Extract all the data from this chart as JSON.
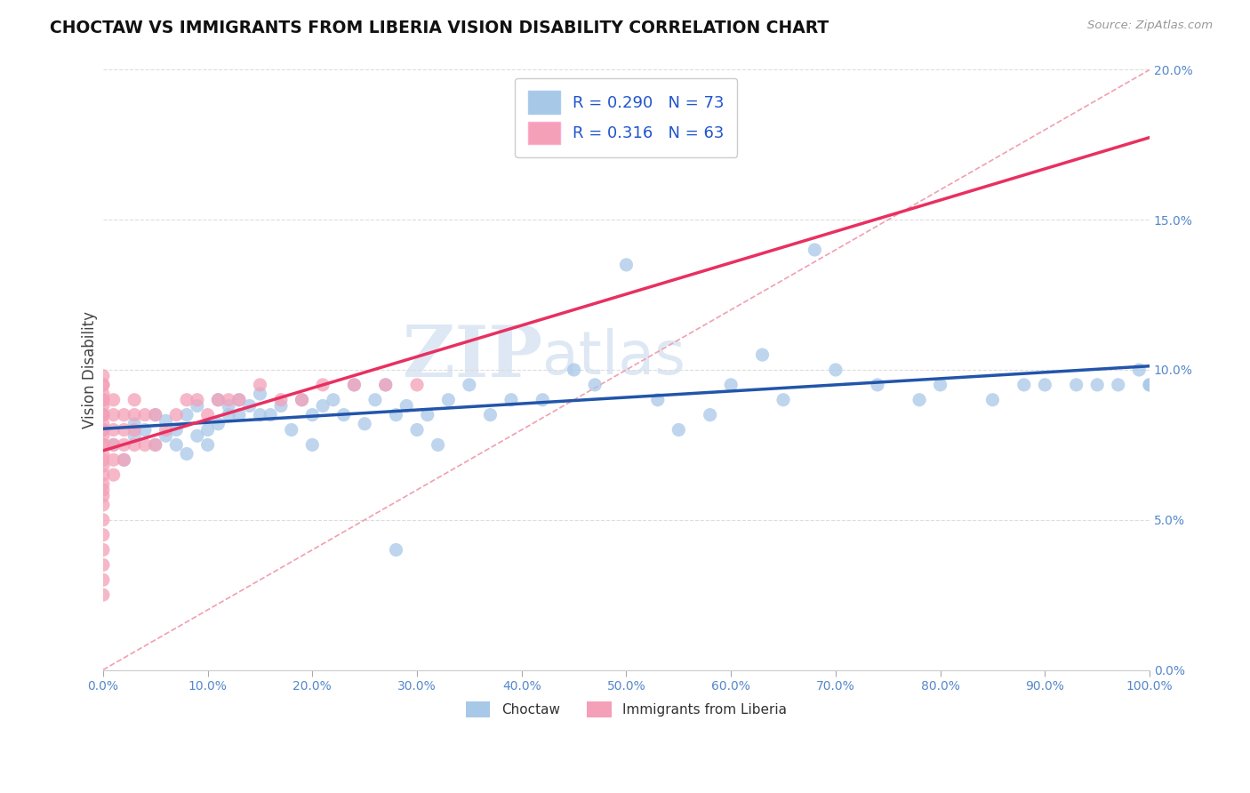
{
  "title": "CHOCTAW VS IMMIGRANTS FROM LIBERIA VISION DISABILITY CORRELATION CHART",
  "source_text": "Source: ZipAtlas.com",
  "ylabel": "Vision Disability",
  "xlim": [
    0,
    100
  ],
  "ylim": [
    0,
    20
  ],
  "xticks": [
    0,
    10,
    20,
    30,
    40,
    50,
    60,
    70,
    80,
    90,
    100
  ],
  "yticks": [
    0,
    5,
    10,
    15,
    20
  ],
  "choctaw_color": "#a8c8e8",
  "liberia_color": "#f4a0b8",
  "choctaw_line_color": "#2255aa",
  "liberia_line_color": "#e83060",
  "ref_line_color": "#f0a0b0",
  "choctaw_R": 0.29,
  "choctaw_N": 73,
  "liberia_R": 0.316,
  "liberia_N": 63,
  "watermark_zip": "ZIP",
  "watermark_atlas": "atlas",
  "background_color": "#ffffff",
  "choctaw_x": [
    1,
    2,
    3,
    3,
    4,
    5,
    5,
    6,
    6,
    7,
    7,
    8,
    8,
    9,
    9,
    10,
    10,
    11,
    11,
    12,
    12,
    13,
    13,
    14,
    15,
    15,
    16,
    17,
    18,
    19,
    20,
    20,
    21,
    22,
    23,
    24,
    25,
    26,
    27,
    28,
    29,
    30,
    31,
    32,
    33,
    35,
    37,
    39,
    42,
    45,
    47,
    50,
    53,
    55,
    58,
    60,
    63,
    65,
    68,
    70,
    74,
    78,
    80,
    85,
    88,
    90,
    93,
    95,
    97,
    99,
    100,
    100,
    28
  ],
  "choctaw_y": [
    7.5,
    7.0,
    7.8,
    8.2,
    8.0,
    7.5,
    8.5,
    7.8,
    8.3,
    7.5,
    8.0,
    7.2,
    8.5,
    7.8,
    8.8,
    7.5,
    8.0,
    8.2,
    9.0,
    8.5,
    8.8,
    8.5,
    9.0,
    8.8,
    8.5,
    9.2,
    8.5,
    8.8,
    8.0,
    9.0,
    8.5,
    7.5,
    8.8,
    9.0,
    8.5,
    9.5,
    8.2,
    9.0,
    9.5,
    8.5,
    8.8,
    8.0,
    8.5,
    7.5,
    9.0,
    9.5,
    8.5,
    9.0,
    9.0,
    10.0,
    9.5,
    13.5,
    9.0,
    8.0,
    8.5,
    9.5,
    10.5,
    9.0,
    14.0,
    10.0,
    9.5,
    9.0,
    9.5,
    9.0,
    9.5,
    9.5,
    9.5,
    9.5,
    9.5,
    10.0,
    9.5,
    9.5,
    4.0
  ],
  "liberia_x": [
    0,
    0,
    0,
    0,
    0,
    0,
    0,
    0,
    0,
    0,
    0,
    0,
    0,
    0,
    0,
    0,
    0,
    0,
    0,
    0,
    0,
    0,
    0,
    0,
    0,
    0,
    0,
    0,
    0,
    0,
    1,
    1,
    1,
    1,
    1,
    1,
    2,
    2,
    2,
    2,
    3,
    3,
    3,
    3,
    4,
    4,
    5,
    5,
    6,
    7,
    8,
    9,
    10,
    11,
    12,
    13,
    15,
    17,
    19,
    21,
    24,
    27,
    30
  ],
  "liberia_y": [
    2.5,
    3.0,
    3.5,
    4.0,
    4.5,
    5.0,
    5.5,
    5.8,
    6.0,
    6.2,
    6.5,
    6.8,
    7.0,
    7.2,
    7.5,
    7.8,
    8.0,
    8.2,
    8.5,
    8.8,
    9.0,
    9.2,
    9.5,
    9.8,
    7.5,
    8.5,
    9.5,
    8.0,
    8.5,
    9.0,
    6.5,
    7.0,
    7.5,
    8.0,
    8.5,
    9.0,
    7.0,
    7.5,
    8.0,
    8.5,
    7.5,
    8.0,
    8.5,
    9.0,
    7.5,
    8.5,
    7.5,
    8.5,
    8.0,
    8.5,
    9.0,
    9.0,
    8.5,
    9.0,
    9.0,
    9.0,
    9.5,
    9.0,
    9.0,
    9.5,
    9.5,
    9.5,
    9.5
  ]
}
